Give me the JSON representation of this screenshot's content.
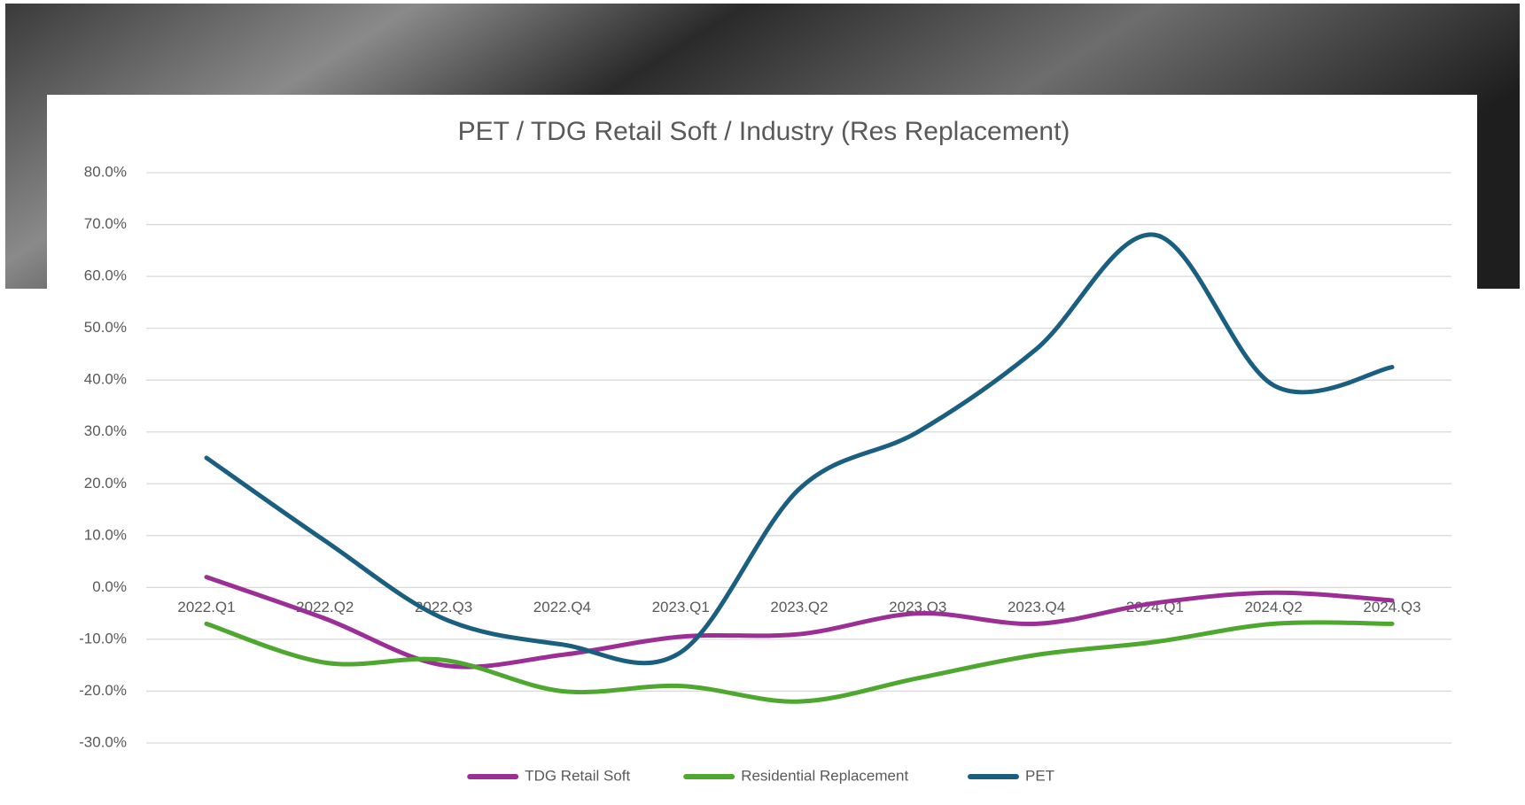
{
  "chart_data": {
    "type": "line",
    "title": "PET / TDG Retail Soft / Industry (Res Replacement)",
    "categories": [
      "2022.Q1",
      "2022.Q2",
      "2022.Q3",
      "2022.Q4",
      "2023.Q1",
      "2023.Q2",
      "2023.Q3",
      "2023.Q4",
      "2024.Q1",
      "2024.Q2",
      "2024.Q3"
    ],
    "series": [
      {
        "name": "TDG Retail Soft",
        "color": "#9b2f96",
        "values": [
          2,
          -6,
          -15,
          -13,
          -9.5,
          -9,
          -5,
          -7,
          -3,
          -1,
          -2.5
        ]
      },
      {
        "name": "Residential Replacement",
        "color": "#4ea72e",
        "values": [
          -7,
          -14.5,
          -14,
          -20,
          -19,
          -22,
          -17.5,
          -13,
          -10.5,
          -7,
          -7
        ]
      },
      {
        "name": "PET",
        "color": "#1b5f80",
        "values": [
          25,
          9,
          -6,
          -11,
          -12.5,
          19,
          30,
          46,
          68,
          39,
          42.5
        ]
      }
    ],
    "ylim": [
      -30,
      80
    ],
    "yticks": [
      {
        "value": -30,
        "label": "-30.0%"
      },
      {
        "value": -20,
        "label": "-20.0%"
      },
      {
        "value": -10,
        "label": "-10.0%"
      },
      {
        "value": 0,
        "label": "0.0%"
      },
      {
        "value": 10,
        "label": "10.0%"
      },
      {
        "value": 20,
        "label": "20.0%"
      },
      {
        "value": 30,
        "label": "30.0%"
      },
      {
        "value": 40,
        "label": "40.0%"
      },
      {
        "value": 50,
        "label": "50.0%"
      },
      {
        "value": 60,
        "label": "60.0%"
      },
      {
        "value": 70,
        "label": "70.0%"
      },
      {
        "value": 80,
        "label": "80.0%"
      }
    ],
    "grid": true,
    "smooth": true,
    "legend": "bottom"
  }
}
